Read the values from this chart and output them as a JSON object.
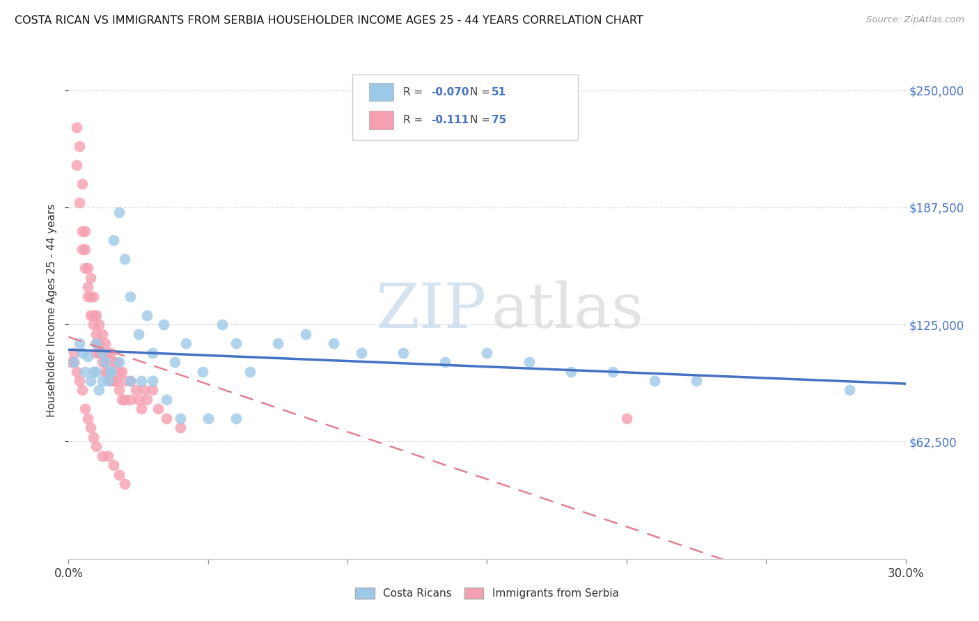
{
  "title": "COSTA RICAN VS IMMIGRANTS FROM SERBIA HOUSEHOLDER INCOME AGES 25 - 44 YEARS CORRELATION CHART",
  "source": "Source: ZipAtlas.com",
  "ylabel": "Householder Income Ages 25 - 44 years",
  "xmin": 0.0,
  "xmax": 0.3,
  "ymin": 0,
  "ymax": 265000,
  "ytick_vals": [
    62500,
    125000,
    187500,
    250000
  ],
  "ytick_labels": [
    "$62,500",
    "$125,000",
    "$187,500",
    "$250,000"
  ],
  "xtick_vals": [
    0.0,
    0.05,
    0.1,
    0.15,
    0.2,
    0.25,
    0.3
  ],
  "blue_color": "#9ec8e8",
  "pink_color": "#f4a0b0",
  "blue_line_color": "#4472c4",
  "pink_line_color": "#e08090",
  "blue_R": -0.07,
  "blue_N": 51,
  "pink_R": -0.111,
  "pink_N": 75,
  "watermark_zip_color": "#aac8e0",
  "watermark_atlas_color": "#c8c8c8",
  "grid_color": "#d8d8e8",
  "blue_x": [
    0.002,
    0.004,
    0.005,
    0.006,
    0.007,
    0.008,
    0.009,
    0.01,
    0.011,
    0.012,
    0.013,
    0.014,
    0.015,
    0.016,
    0.018,
    0.02,
    0.022,
    0.025,
    0.028,
    0.03,
    0.034,
    0.038,
    0.042,
    0.048,
    0.055,
    0.06,
    0.065,
    0.075,
    0.085,
    0.095,
    0.105,
    0.12,
    0.135,
    0.15,
    0.165,
    0.18,
    0.195,
    0.21,
    0.225,
    0.01,
    0.012,
    0.015,
    0.018,
    0.022,
    0.026,
    0.03,
    0.035,
    0.04,
    0.05,
    0.06,
    0.28
  ],
  "blue_y": [
    105000,
    115000,
    110000,
    100000,
    108000,
    95000,
    100000,
    100000,
    90000,
    95000,
    105000,
    95000,
    100000,
    170000,
    185000,
    160000,
    140000,
    120000,
    130000,
    110000,
    125000,
    105000,
    115000,
    100000,
    125000,
    115000,
    100000,
    115000,
    120000,
    115000,
    110000,
    110000,
    105000,
    110000,
    105000,
    100000,
    100000,
    95000,
    95000,
    115000,
    110000,
    100000,
    105000,
    95000,
    95000,
    95000,
    85000,
    75000,
    75000,
    75000,
    90000
  ],
  "pink_x": [
    0.001,
    0.002,
    0.003,
    0.003,
    0.004,
    0.004,
    0.005,
    0.005,
    0.005,
    0.006,
    0.006,
    0.006,
    0.007,
    0.007,
    0.007,
    0.008,
    0.008,
    0.008,
    0.009,
    0.009,
    0.009,
    0.01,
    0.01,
    0.01,
    0.01,
    0.011,
    0.011,
    0.011,
    0.012,
    0.012,
    0.012,
    0.013,
    0.013,
    0.013,
    0.014,
    0.014,
    0.015,
    0.015,
    0.015,
    0.016,
    0.016,
    0.017,
    0.017,
    0.018,
    0.018,
    0.019,
    0.019,
    0.02,
    0.02,
    0.022,
    0.022,
    0.024,
    0.025,
    0.026,
    0.027,
    0.028,
    0.03,
    0.032,
    0.035,
    0.04,
    0.002,
    0.003,
    0.004,
    0.005,
    0.006,
    0.007,
    0.008,
    0.009,
    0.01,
    0.012,
    0.014,
    0.016,
    0.018,
    0.02,
    0.2
  ],
  "pink_y": [
    105000,
    110000,
    230000,
    210000,
    220000,
    190000,
    200000,
    175000,
    165000,
    155000,
    175000,
    165000,
    155000,
    145000,
    140000,
    150000,
    140000,
    130000,
    140000,
    130000,
    125000,
    130000,
    120000,
    115000,
    110000,
    125000,
    115000,
    110000,
    120000,
    110000,
    105000,
    115000,
    105000,
    100000,
    110000,
    100000,
    110000,
    100000,
    95000,
    105000,
    95000,
    105000,
    95000,
    100000,
    90000,
    100000,
    85000,
    95000,
    85000,
    95000,
    85000,
    90000,
    85000,
    80000,
    90000,
    85000,
    90000,
    80000,
    75000,
    70000,
    105000,
    100000,
    95000,
    90000,
    80000,
    75000,
    70000,
    65000,
    60000,
    55000,
    55000,
    50000,
    45000,
    40000,
    75000
  ]
}
